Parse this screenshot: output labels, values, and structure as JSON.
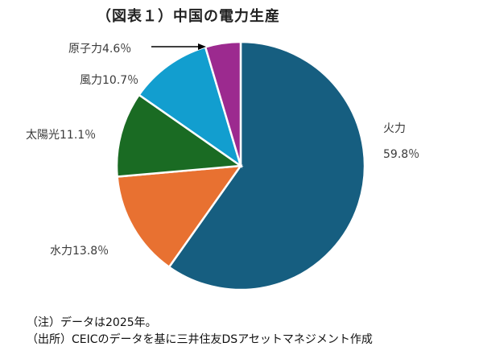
{
  "title": "（図表１）中国の電力生産",
  "chart_data": {
    "type": "pie",
    "title": "（図表１）中国の電力生産",
    "categories": [
      "火力",
      "水力",
      "太陽光",
      "風力",
      "原子力"
    ],
    "values": [
      59.8,
      13.8,
      11.1,
      10.7,
      4.6
    ],
    "unit": "%",
    "colors": [
      "#165E80",
      "#E87131",
      "#1A6B23",
      "#129ECF",
      "#9C2A8F"
    ],
    "start_angle": "12 o'clock, clockwise",
    "legend": "none (direct labels)"
  },
  "labels": {
    "thermal_name": "火力",
    "thermal_value": "59.8％",
    "hydro": "水力13.8％",
    "solar": "太陽光11.1％",
    "wind": "風力10.7％",
    "nuclear": "原子力4.6％"
  },
  "notes": {
    "note": "（注）データは2025年。",
    "source": "（出所）CEICのデータを基に三井住友DSアセットマネジメント作成"
  }
}
